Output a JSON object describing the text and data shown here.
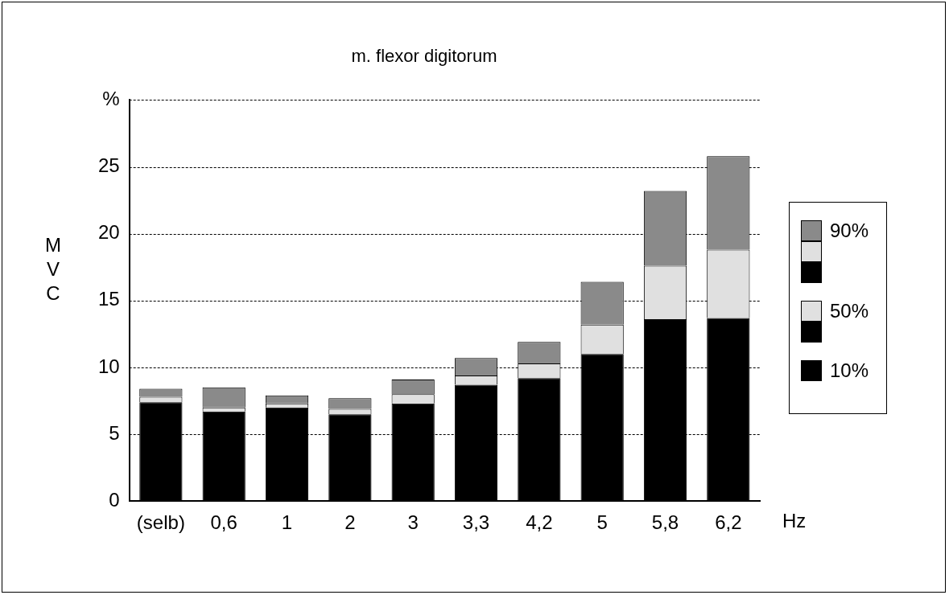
{
  "chart_data": {
    "type": "bar",
    "title": "m. flexor digitorum",
    "xlabel": "Hz",
    "ylabel": "MVC",
    "categories": [
      "(selb)",
      "0,6",
      "1",
      "2",
      "3",
      "3,3",
      "4,2",
      "5",
      "5,8",
      "6,2"
    ],
    "stacked": true,
    "series": [
      {
        "name": "10%",
        "color": "#000000",
        "values": [
          7.4,
          6.7,
          7.0,
          6.5,
          7.3,
          8.7,
          9.2,
          11.0,
          13.6,
          13.7
        ]
      },
      {
        "name": "50%",
        "color": "#e0e0e0",
        "values": [
          0.4,
          0.3,
          0.3,
          0.4,
          0.7,
          0.7,
          1.1,
          2.2,
          4.0,
          5.1
        ]
      },
      {
        "name": "90%",
        "color": "#8a8a8a",
        "values": [
          0.6,
          1.5,
          0.6,
          0.8,
          1.1,
          1.3,
          1.6,
          3.2,
          5.6,
          7.0
        ]
      }
    ],
    "ylim": [
      0,
      30
    ],
    "yticks": [
      0,
      5,
      10,
      15,
      20,
      25,
      {
        "value": 30,
        "label": "%"
      }
    ],
    "grid": "y",
    "legend": "right"
  }
}
